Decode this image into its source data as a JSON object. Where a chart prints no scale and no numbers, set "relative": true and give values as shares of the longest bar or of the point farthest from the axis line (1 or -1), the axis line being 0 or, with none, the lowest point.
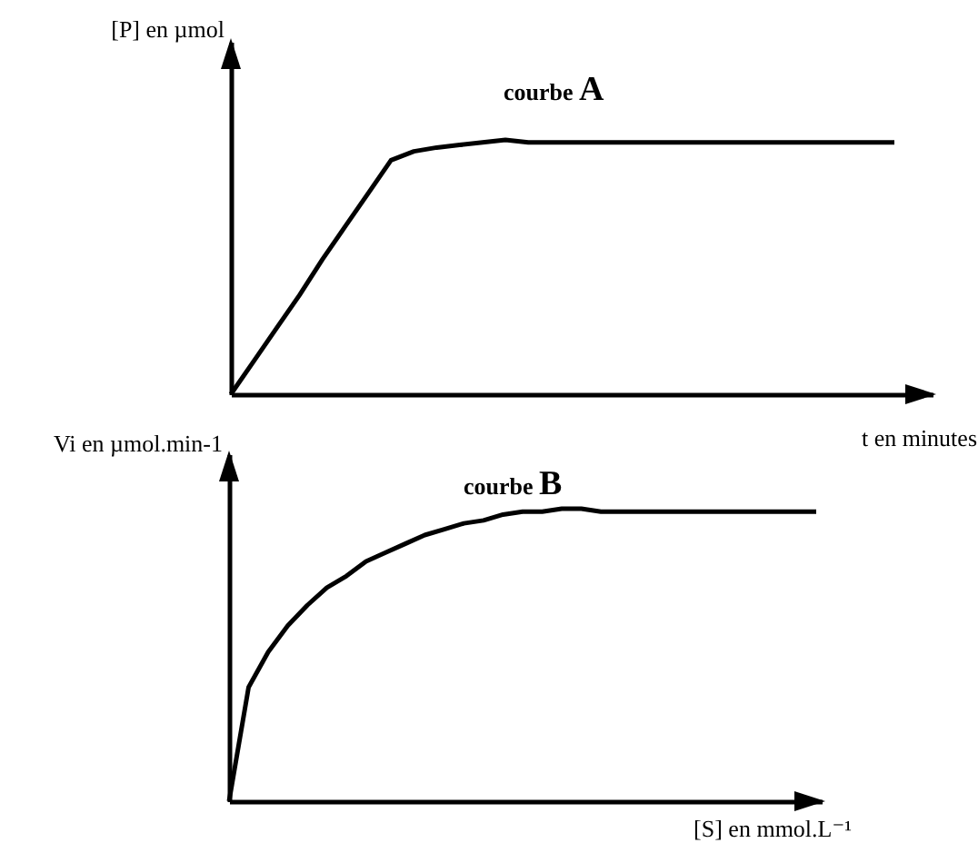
{
  "chart_data": [
    {
      "type": "line",
      "relative": true,
      "xlabel": "t en minutes",
      "ylabel": "[P] en µmol",
      "annotations": [
        "courbe A"
      ],
      "categories": [
        null,
        null,
        null,
        null,
        null,
        null,
        null,
        null,
        null,
        null,
        null,
        null,
        null,
        null,
        null,
        null,
        null,
        null,
        null,
        null,
        null,
        null,
        null,
        null,
        null,
        null,
        null,
        null,
        null,
        null
      ],
      "series": [
        {
          "color": "#000000",
          "values": [
            0,
            0.13,
            0.26,
            0.39,
            0.53,
            0.66,
            0.79,
            0.92,
            0.955,
            0.97,
            0.98,
            0.99,
            1,
            0.99,
            0.99,
            0.99,
            0.99,
            0.99,
            0.99,
            0.99,
            0.99,
            0.99,
            0.99,
            0.99,
            0.99,
            0.99,
            0.99,
            0.99,
            0.99,
            0.99
          ]
        }
      ]
    },
    {
      "type": "line",
      "relative": true,
      "xlabel": "[S] en mmol.L⁻¹",
      "ylabel": "Vi en µmol.min-1",
      "annotations": [
        "courbe B"
      ],
      "categories": [
        null,
        null,
        null,
        null,
        null,
        null,
        null,
        null,
        null,
        null,
        null,
        null,
        null,
        null,
        null,
        null,
        null,
        null,
        null,
        null,
        null,
        null,
        null,
        null,
        null,
        null,
        null,
        null,
        null,
        null,
        null
      ],
      "series": [
        {
          "color": "#000000",
          "values": [
            0,
            0.39,
            0.51,
            0.6,
            0.67,
            0.73,
            0.77,
            0.82,
            0.85,
            0.88,
            0.91,
            0.93,
            0.95,
            0.96,
            0.98,
            0.99,
            0.99,
            1,
            1,
            0.99,
            0.99,
            0.99,
            0.99,
            0.99,
            0.99,
            0.99,
            0.99,
            0.99,
            0.99,
            0.99,
            0.99
          ]
        }
      ]
    }
  ]
}
